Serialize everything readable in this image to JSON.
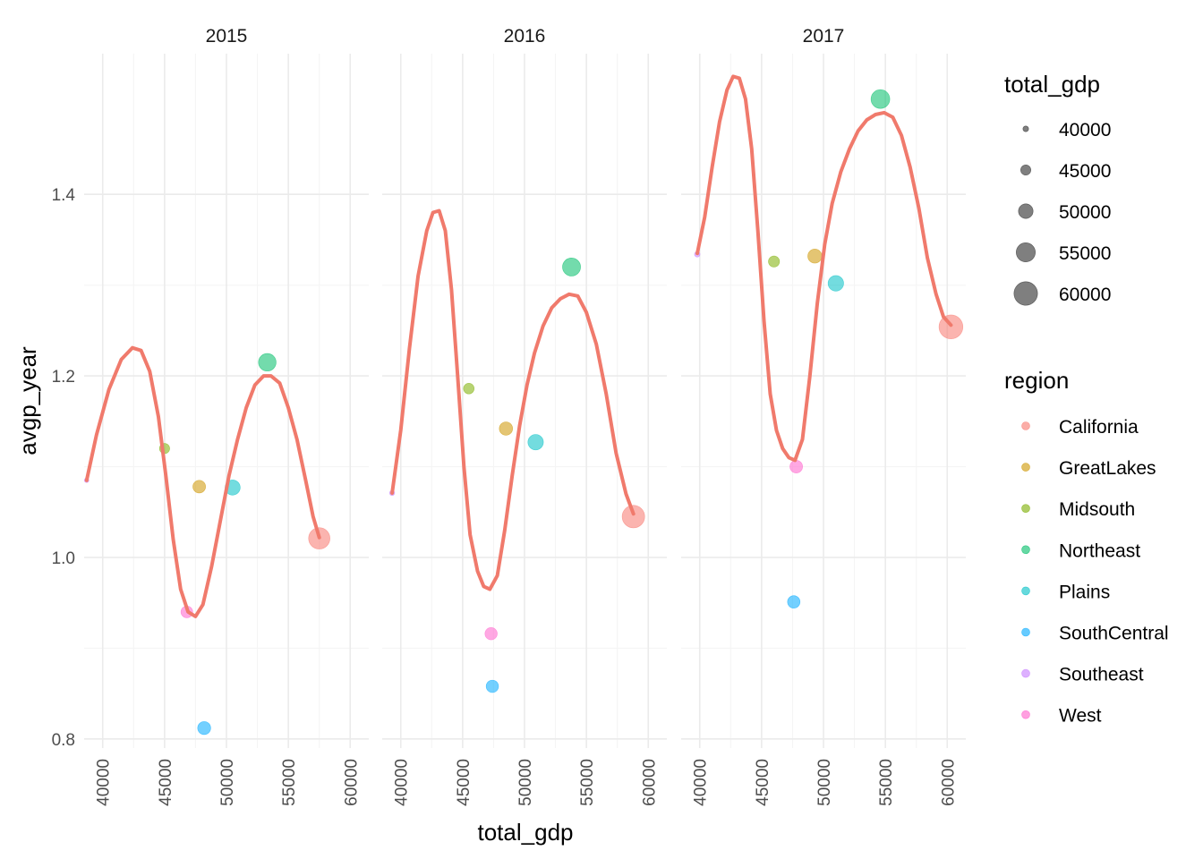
{
  "chart_data": {
    "type": "scatter",
    "xlabel": "total_gdp",
    "ylabel": "avgp_year",
    "xlim": [
      38500,
      61500
    ],
    "ylim": [
      0.79,
      1.555
    ],
    "x_ticks": [
      40000,
      45000,
      50000,
      55000,
      60000
    ],
    "x_tick_labels": [
      "40000",
      "45000",
      "50000",
      "55000",
      "60000"
    ],
    "y_ticks": [
      0.8,
      1.0,
      1.2,
      1.4
    ],
    "y_tick_labels": [
      "0.8",
      "1.0",
      "1.2",
      "1.4"
    ],
    "grid": true,
    "size_legend": {
      "title": "total_gdp",
      "values": [
        40000,
        45000,
        50000,
        55000,
        60000
      ],
      "labels": [
        "40000",
        "45000",
        "50000",
        "55000",
        "60000"
      ]
    },
    "color_legend": {
      "title": "region",
      "entries": [
        "California",
        "GreatLakes",
        "Midsouth",
        "Northeast",
        "Plains",
        "SouthCentral",
        "Southeast",
        "West"
      ]
    },
    "colors": {
      "California": "#F8766D",
      "GreatLakes": "#CD9600",
      "Midsouth": "#7CAE00",
      "Northeast": "#00BE67",
      "Plains": "#00BFC4",
      "SouthCentral": "#00A9FF",
      "Southeast": "#C77CFF",
      "West": "#FF61CC",
      "smooth": "#F07A6C"
    },
    "panels": [
      {
        "label": "2015",
        "points": [
          {
            "region": "Southeast",
            "x": 38700,
            "y": 1.085
          },
          {
            "region": "Midsouth",
            "x": 45000,
            "y": 1.12
          },
          {
            "region": "GreatLakes",
            "x": 47800,
            "y": 1.078
          },
          {
            "region": "West",
            "x": 46800,
            "y": 0.94
          },
          {
            "region": "SouthCentral",
            "x": 48200,
            "y": 0.812
          },
          {
            "region": "Plains",
            "x": 50500,
            "y": 1.077
          },
          {
            "region": "Northeast",
            "x": 53300,
            "y": 1.215
          },
          {
            "region": "California",
            "x": 57500,
            "y": 1.021
          }
        ],
        "smooth": [
          [
            38700,
            1.085
          ],
          [
            39500,
            1.135
          ],
          [
            40500,
            1.185
          ],
          [
            41500,
            1.218
          ],
          [
            42400,
            1.231
          ],
          [
            43100,
            1.228
          ],
          [
            43800,
            1.205
          ],
          [
            44500,
            1.155
          ],
          [
            45100,
            1.09
          ],
          [
            45700,
            1.02
          ],
          [
            46300,
            0.965
          ],
          [
            46900,
            0.94
          ],
          [
            47500,
            0.935
          ],
          [
            48100,
            0.948
          ],
          [
            48800,
            0.99
          ],
          [
            49500,
            1.04
          ],
          [
            50200,
            1.09
          ],
          [
            50900,
            1.13
          ],
          [
            51600,
            1.165
          ],
          [
            52300,
            1.19
          ],
          [
            53000,
            1.2
          ],
          [
            53600,
            1.2
          ],
          [
            54300,
            1.192
          ],
          [
            55000,
            1.165
          ],
          [
            55700,
            1.13
          ],
          [
            56400,
            1.085
          ],
          [
            57000,
            1.045
          ],
          [
            57500,
            1.022
          ]
        ]
      },
      {
        "label": "2016",
        "points": [
          {
            "region": "Southeast",
            "x": 39300,
            "y": 1.071
          },
          {
            "region": "Midsouth",
            "x": 45500,
            "y": 1.186
          },
          {
            "region": "GreatLakes",
            "x": 48500,
            "y": 1.142
          },
          {
            "region": "West",
            "x": 47300,
            "y": 0.916
          },
          {
            "region": "SouthCentral",
            "x": 47400,
            "y": 0.858
          },
          {
            "region": "Plains",
            "x": 50900,
            "y": 1.127
          },
          {
            "region": "Northeast",
            "x": 53800,
            "y": 1.32
          },
          {
            "region": "California",
            "x": 58800,
            "y": 1.045
          }
        ],
        "smooth": [
          [
            39300,
            1.071
          ],
          [
            40000,
            1.14
          ],
          [
            40700,
            1.23
          ],
          [
            41400,
            1.31
          ],
          [
            42100,
            1.36
          ],
          [
            42600,
            1.38
          ],
          [
            43100,
            1.382
          ],
          [
            43600,
            1.36
          ],
          [
            44100,
            1.295
          ],
          [
            44600,
            1.2
          ],
          [
            45100,
            1.1
          ],
          [
            45600,
            1.025
          ],
          [
            46200,
            0.985
          ],
          [
            46700,
            0.968
          ],
          [
            47200,
            0.965
          ],
          [
            47800,
            0.98
          ],
          [
            48400,
            1.03
          ],
          [
            49000,
            1.09
          ],
          [
            49600,
            1.145
          ],
          [
            50200,
            1.19
          ],
          [
            50800,
            1.225
          ],
          [
            51500,
            1.255
          ],
          [
            52200,
            1.275
          ],
          [
            52900,
            1.285
          ],
          [
            53600,
            1.29
          ],
          [
            54300,
            1.288
          ],
          [
            55000,
            1.27
          ],
          [
            55800,
            1.235
          ],
          [
            56600,
            1.18
          ],
          [
            57400,
            1.115
          ],
          [
            58200,
            1.07
          ],
          [
            58800,
            1.048
          ]
        ]
      },
      {
        "label": "2017",
        "points": [
          {
            "region": "Southeast",
            "x": 39800,
            "y": 1.334
          },
          {
            "region": "Midsouth",
            "x": 46000,
            "y": 1.326
          },
          {
            "region": "GreatLakes",
            "x": 49300,
            "y": 1.332
          },
          {
            "region": "West",
            "x": 47800,
            "y": 1.1
          },
          {
            "region": "SouthCentral",
            "x": 47600,
            "y": 0.951
          },
          {
            "region": "Plains",
            "x": 51000,
            "y": 1.302
          },
          {
            "region": "Northeast",
            "x": 54600,
            "y": 1.505
          },
          {
            "region": "California",
            "x": 60300,
            "y": 1.254
          }
        ],
        "smooth": [
          [
            39800,
            1.335
          ],
          [
            40400,
            1.375
          ],
          [
            41000,
            1.43
          ],
          [
            41600,
            1.48
          ],
          [
            42200,
            1.515
          ],
          [
            42700,
            1.53
          ],
          [
            43200,
            1.528
          ],
          [
            43700,
            1.505
          ],
          [
            44200,
            1.45
          ],
          [
            44700,
            1.36
          ],
          [
            45200,
            1.26
          ],
          [
            45700,
            1.18
          ],
          [
            46200,
            1.14
          ],
          [
            46700,
            1.12
          ],
          [
            47200,
            1.11
          ],
          [
            47700,
            1.107
          ],
          [
            48300,
            1.13
          ],
          [
            48900,
            1.2
          ],
          [
            49500,
            1.28
          ],
          [
            50100,
            1.345
          ],
          [
            50700,
            1.39
          ],
          [
            51400,
            1.425
          ],
          [
            52100,
            1.45
          ],
          [
            52800,
            1.47
          ],
          [
            53500,
            1.482
          ],
          [
            54200,
            1.488
          ],
          [
            54900,
            1.49
          ],
          [
            55600,
            1.485
          ],
          [
            56300,
            1.465
          ],
          [
            57000,
            1.43
          ],
          [
            57700,
            1.385
          ],
          [
            58400,
            1.33
          ],
          [
            59100,
            1.29
          ],
          [
            59700,
            1.265
          ],
          [
            60300,
            1.256
          ]
        ]
      }
    ]
  }
}
